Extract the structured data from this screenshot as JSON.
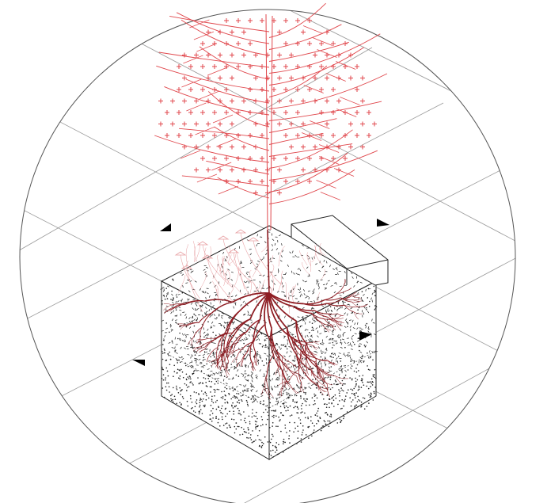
{
  "colors": {
    "background": "#ffffff",
    "outline": "#555555",
    "grid": "#9a9a9a",
    "tree": "#e0474c",
    "roots": "#8e1c22",
    "mycelium": "#e8a0a3",
    "soil": "#222222",
    "marker": "#000000"
  },
  "icons": {
    "markers": "triangle-marker-icon",
    "plus": "plus-sign-icon"
  }
}
